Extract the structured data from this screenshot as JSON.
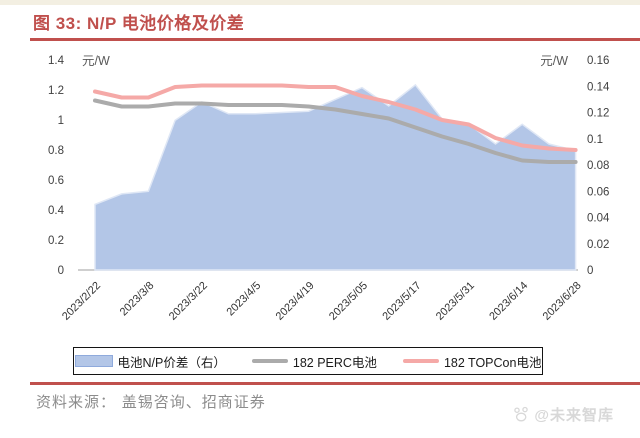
{
  "page": {
    "title": "图 33: N/P 电池价格及价差",
    "source_label": "资料来源： 盖锡咨询、招商证券",
    "watermark": "@未来智库",
    "accent_color": "#c0504d"
  },
  "chart_data": {
    "type": "area",
    "subtype": "combo-area-line",
    "n_points": 19,
    "label_every": 2,
    "x_tick_labels": [
      "2023/2/22",
      "2023/3/8",
      "2023/3/22",
      "2023/4/5",
      "2023/4/19",
      "2023/5/05",
      "2023/5/17",
      "2023/5/31",
      "2023/6/14",
      "2023/6/28"
    ],
    "left_axis": {
      "title": "元/W",
      "min": 0,
      "max": 1.4,
      "tick_labels": [
        "0",
        "0.2",
        "0.4",
        "0.6",
        "0.8",
        "1",
        "1.2",
        "1.4"
      ]
    },
    "right_axis": {
      "title": "元/W",
      "min": 0,
      "max": 0.16,
      "tick_labels": [
        "0",
        "0.02",
        "0.04",
        "0.06",
        "0.08",
        "0.1",
        "0.12",
        "0.14",
        "0.16"
      ]
    },
    "grid": false,
    "legend_position": "bottom",
    "series": [
      {
        "name": "电池N/P价差（右）",
        "type": "area",
        "axis": "right",
        "color": "#b3c6e7",
        "edge_color": "#dfe7f5",
        "values": [
          0.05,
          0.058,
          0.06,
          0.114,
          0.128,
          0.119,
          0.119,
          0.12,
          0.121,
          0.13,
          0.139,
          0.125,
          0.141,
          0.115,
          0.111,
          0.096,
          0.111,
          0.096,
          0.091
        ]
      },
      {
        "name": "182 PERC电池",
        "type": "line",
        "axis": "left",
        "color": "#ababab",
        "values": [
          1.13,
          1.09,
          1.09,
          1.11,
          1.11,
          1.1,
          1.1,
          1.1,
          1.09,
          1.07,
          1.04,
          1.01,
          0.95,
          0.89,
          0.84,
          0.78,
          0.73,
          0.72,
          0.72
        ]
      },
      {
        "name": "182 TOPCon电池",
        "type": "line",
        "axis": "left",
        "color": "#f5a9a7",
        "values": [
          1.19,
          1.15,
          1.15,
          1.22,
          1.23,
          1.23,
          1.23,
          1.23,
          1.22,
          1.22,
          1.16,
          1.12,
          1.07,
          1.0,
          0.97,
          0.88,
          0.83,
          0.81,
          0.8
        ]
      }
    ]
  }
}
